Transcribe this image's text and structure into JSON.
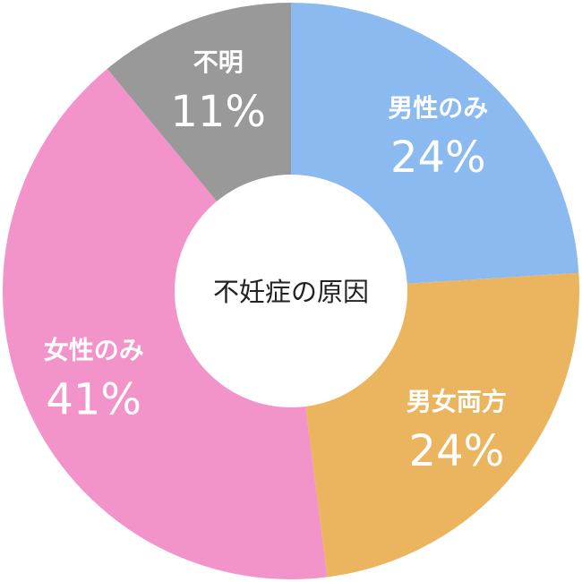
{
  "chart_data": {
    "type": "pie",
    "center_label": "不妊症の原因",
    "slices": [
      {
        "name": "男性のみ",
        "value": 24,
        "label": "24%",
        "color": "#8bbaf1"
      },
      {
        "name": "男女両方",
        "value": 24,
        "label": "24%",
        "color": "#ebb55f"
      },
      {
        "name": "女性のみ",
        "value": 41,
        "label": "41%",
        "color": "#f294c9"
      },
      {
        "name": "不明",
        "value": 11,
        "label": "11%",
        "color": "#999999"
      }
    ]
  }
}
